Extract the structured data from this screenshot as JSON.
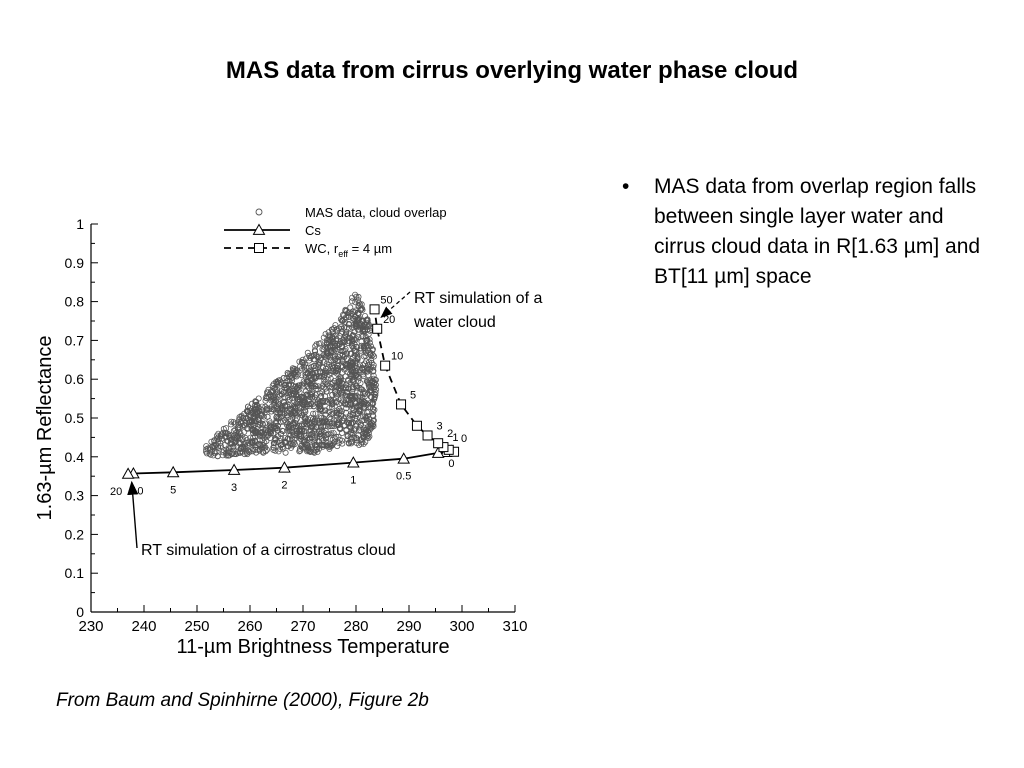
{
  "slide": {
    "title": "MAS data from cirrus overlying water phase cloud",
    "bullets": [
      {
        "marker": "•",
        "text": "MAS data from overlap region falls between single layer water and cirrus cloud data in R[1.63 µm] and BT[11 µm] space"
      }
    ],
    "caption": "From Baum and Spinhirne (2000), Figure 2b"
  },
  "chart_data": {
    "type": "scatter",
    "xlabel": "11-µm Brightness Temperature",
    "ylabel": "1.63-µm Reflectance",
    "xlim": [
      230,
      310
    ],
    "ylim": [
      0,
      1
    ],
    "xticks": [
      "230",
      "240",
      "250",
      "260",
      "270",
      "280",
      "290",
      "300",
      "310"
    ],
    "yticks": [
      "0",
      "0.1",
      "0.2",
      "0.3",
      "0.4",
      "0.5",
      "0.6",
      "0.7",
      "0.8",
      "0.9",
      "1"
    ],
    "grid": false,
    "legend": {
      "position": "top",
      "entries": [
        {
          "label": "MAS data, cloud overlap",
          "marker": "circle",
          "line": "none"
        },
        {
          "label": "Cs",
          "marker": "triangle",
          "line": "solid"
        },
        {
          "label": "WC, r",
          "sub": "eff",
          "suffix": " = 4 µm",
          "marker": "square",
          "line": "dashed"
        }
      ]
    },
    "series": [
      {
        "name": "MAS data, cloud overlap",
        "kind": "scatter-cloud",
        "color": "#555555",
        "outline": [
          [
            251,
            0.42
          ],
          [
            254,
            0.46
          ],
          [
            258,
            0.51
          ],
          [
            263,
            0.57
          ],
          [
            268,
            0.63
          ],
          [
            273,
            0.7
          ],
          [
            277,
            0.76
          ],
          [
            280,
            0.83
          ],
          [
            283,
            0.73
          ],
          [
            284,
            0.6
          ],
          [
            283.5,
            0.48
          ],
          [
            282,
            0.43
          ],
          [
            278,
            0.43
          ],
          [
            272,
            0.41
          ],
          [
            262,
            0.41
          ],
          [
            256,
            0.4
          ],
          [
            252,
            0.4
          ]
        ]
      },
      {
        "name": "Cs",
        "marker": "triangle",
        "line": "solid",
        "points": [
          [
            298,
            0.415
          ],
          [
            297,
            0.412
          ],
          [
            295.5,
            0.41
          ],
          [
            289,
            0.395
          ],
          [
            279.5,
            0.385
          ],
          [
            266.5,
            0.372
          ],
          [
            257,
            0.366
          ],
          [
            245.5,
            0.36
          ],
          [
            238,
            0.357
          ],
          [
            237,
            0.356
          ]
        ],
        "labels": [
          [
            "0",
            298,
            0.415
          ],
          [
            "0.5",
            289,
            0.395
          ],
          [
            "1",
            279.5,
            0.385
          ],
          [
            "2",
            266.5,
            0.372
          ],
          [
            "3",
            257,
            0.366
          ],
          [
            "5",
            245.5,
            0.36
          ],
          [
            "10",
            238,
            0.357
          ],
          [
            "20",
            237,
            0.356
          ]
        ]
      },
      {
        "name": "WC, reff = 4 µm",
        "marker": "square",
        "line": "dashed",
        "points": [
          [
            298.5,
            0.413
          ],
          [
            297.5,
            0.418
          ],
          [
            296.5,
            0.425
          ],
          [
            295.5,
            0.435
          ],
          [
            293.5,
            0.455
          ],
          [
            291.5,
            0.48
          ],
          [
            288.5,
            0.535
          ],
          [
            285.5,
            0.635
          ],
          [
            284,
            0.73
          ],
          [
            283.5,
            0.78
          ]
        ],
        "labels": [
          [
            "0",
            298.5,
            0.413
          ],
          [
            "1",
            296.5,
            0.425
          ],
          [
            "2",
            295.5,
            0.435
          ],
          [
            "3",
            293.5,
            0.455
          ],
          [
            "5",
            288.5,
            0.535
          ],
          [
            "10",
            285.5,
            0.635
          ],
          [
            "20",
            284,
            0.73
          ],
          [
            "50",
            283.5,
            0.78
          ]
        ]
      }
    ],
    "annotations": [
      {
        "lines": [
          "RT simulation of a",
          "water cloud"
        ],
        "pointTo": [
          284,
          0.77
        ]
      },
      {
        "lines": [
          "RT simulation of a cirrostratus cloud"
        ],
        "pointTo": [
          237.5,
          0.345
        ]
      }
    ]
  }
}
